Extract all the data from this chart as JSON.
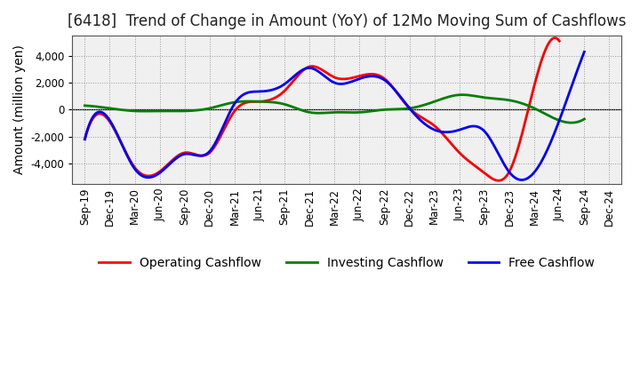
{
  "title": "[6418]  Trend of Change in Amount (YoY) of 12Mo Moving Sum of Cashflows",
  "ylabel": "Amount (million yen)",
  "x_labels": [
    "Sep-19",
    "Dec-19",
    "Mar-20",
    "Jun-20",
    "Sep-20",
    "Dec-20",
    "Mar-21",
    "Jun-21",
    "Sep-21",
    "Dec-21",
    "Mar-22",
    "Jun-22",
    "Sep-22",
    "Dec-22",
    "Mar-23",
    "Jun-23",
    "Sep-23",
    "Dec-23",
    "Mar-24",
    "Jun-24",
    "Sep-24",
    "Dec-24"
  ],
  "operating": [
    -2200,
    -900,
    -4300,
    -4600,
    -3200,
    -3200,
    -100,
    600,
    1400,
    3200,
    2400,
    2500,
    2300,
    100,
    -1200,
    -3200,
    -4700,
    -4600,
    1800,
    5100,
    null,
    null
  ],
  "investing": [
    300,
    100,
    -100,
    -100,
    -100,
    100,
    550,
    600,
    400,
    -200,
    -200,
    -200,
    0,
    100,
    600,
    1100,
    900,
    700,
    100,
    -800,
    -700,
    null
  ],
  "free": [
    -2200,
    -800,
    -4400,
    -4700,
    -3300,
    -3100,
    450,
    1350,
    1900,
    3100,
    2000,
    2300,
    2200,
    100,
    -1500,
    -1500,
    -1600,
    -4650,
    -4650,
    -800,
    4300,
    null
  ],
  "ylim": [
    -5500,
    5500
  ],
  "yticks": [
    -4000,
    -2000,
    0,
    2000,
    4000
  ],
  "line_colors": {
    "operating": "#ff0000",
    "investing": "#008000",
    "free": "#0000ff"
  },
  "legend_labels": {
    "operating": "Operating Cashflow",
    "investing": "Investing Cashflow",
    "free": "Free Cashflow"
  },
  "bg_color": "#ffffff",
  "plot_bg_color": "#f0f0f0",
  "grid_color": "#999999",
  "title_fontsize": 12,
  "label_fontsize": 10,
  "tick_fontsize": 8.5,
  "linewidth": 2.0
}
